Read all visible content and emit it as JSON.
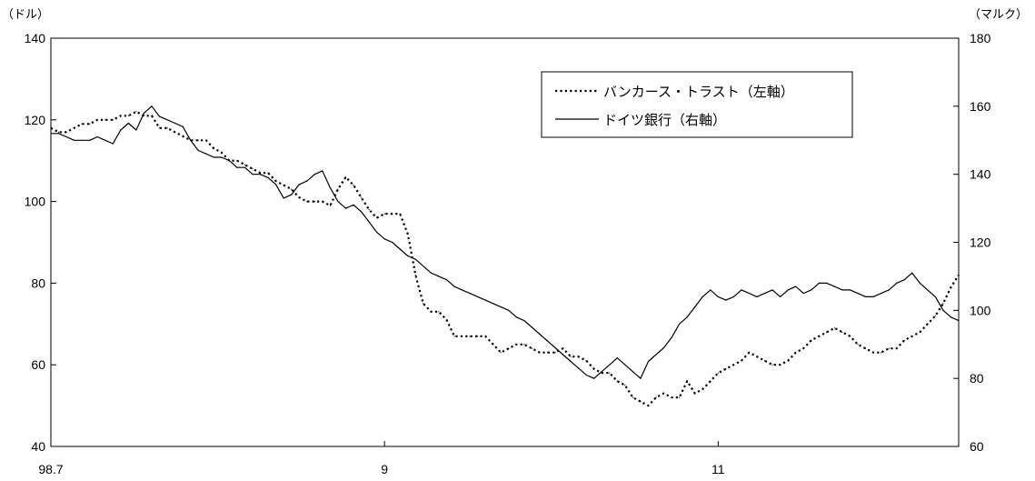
{
  "chart_data": {
    "type": "line",
    "title": "",
    "y_left_unit": "（ドル）",
    "y_right_unit": "（マルク）",
    "y_left_lim": [
      40,
      140
    ],
    "y_left_ticks": [
      40,
      60,
      80,
      100,
      120,
      140
    ],
    "y_right_lim": [
      60,
      180
    ],
    "y_right_ticks": [
      60,
      80,
      100,
      120,
      140,
      160,
      180
    ],
    "x_ticks": [
      {
        "label": "98.7",
        "index": 0
      },
      {
        "label": "9",
        "index": 43
      },
      {
        "label": "11",
        "index": 86
      }
    ],
    "x_count": 118,
    "grid": false,
    "legend_position": "top-right",
    "series": [
      {
        "name": "バンカース・トラスト（左軸）",
        "axis": "left",
        "style": "dotted",
        "color": "#000000",
        "values": [
          118,
          117,
          117,
          118,
          119,
          119,
          120,
          120,
          120,
          121,
          121,
          122,
          121,
          121,
          118,
          118,
          117,
          116,
          115,
          115,
          115,
          113,
          112,
          110,
          110,
          109,
          108,
          107,
          107,
          105,
          104,
          103,
          101,
          100,
          100,
          100,
          99,
          103,
          106,
          104,
          101,
          98,
          96,
          97,
          97,
          97,
          92,
          82,
          75,
          73,
          73,
          71,
          67,
          67,
          67,
          67,
          67,
          65,
          63,
          64,
          65,
          65,
          64,
          63,
          63,
          63,
          64,
          62,
          62,
          61,
          59,
          58,
          58,
          56,
          55,
          52,
          51,
          50,
          52,
          53,
          52,
          52,
          56,
          53,
          54,
          56,
          58,
          59,
          60,
          61,
          63,
          62,
          61,
          60,
          60,
          61,
          63,
          64,
          66,
          67,
          68,
          69,
          68,
          67,
          65,
          64,
          63,
          63,
          64,
          64,
          66,
          67,
          68,
          70,
          72,
          75,
          79,
          82
        ]
      },
      {
        "name": "ドイツ銀行（右軸）",
        "axis": "right",
        "style": "solid",
        "color": "#000000",
        "values": [
          152,
          152,
          151,
          150,
          150,
          150,
          151,
          150,
          149,
          153,
          155,
          153,
          158,
          160,
          157,
          156,
          155,
          154,
          150,
          147,
          146,
          145,
          145,
          144,
          142,
          142,
          140,
          140,
          139,
          137,
          133,
          134,
          137,
          138,
          140,
          141,
          136,
          132,
          130,
          131,
          129,
          126,
          123,
          121,
          120,
          118,
          116,
          115,
          113,
          111,
          110,
          109,
          107,
          106,
          105,
          104,
          103,
          102,
          101,
          100,
          98,
          97,
          95,
          93,
          91,
          89,
          87,
          85,
          83,
          81,
          80,
          82,
          84,
          86,
          84,
          82,
          80,
          85,
          87,
          89,
          92,
          96,
          98,
          101,
          104,
          106,
          104,
          103,
          104,
          106,
          105,
          104,
          105,
          106,
          104,
          106,
          107,
          105,
          106,
          108,
          108,
          107,
          106,
          106,
          105,
          104,
          104,
          105,
          106,
          108,
          109,
          111,
          108,
          106,
          104,
          100,
          98,
          97
        ]
      }
    ]
  }
}
